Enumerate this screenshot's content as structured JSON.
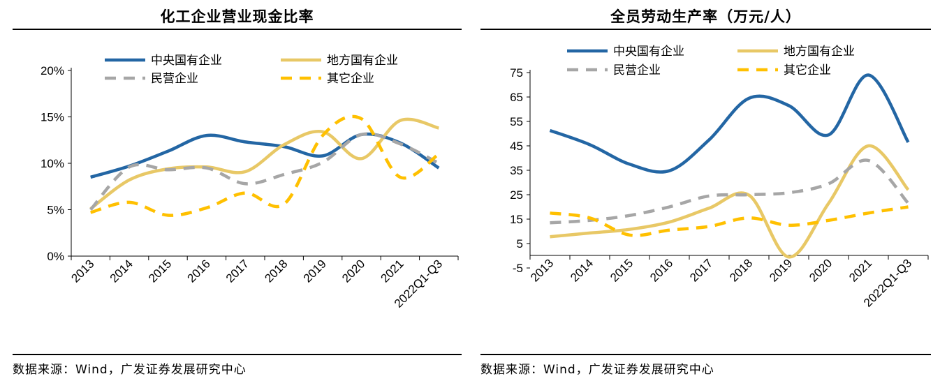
{
  "source_label": "数据来源：Wind，广发证券发展研究中心",
  "chart_data": [
    {
      "type": "line",
      "title": "化工企业营业现金比率",
      "xlabel": "",
      "ylabel": "",
      "categories": [
        "2013",
        "2014",
        "2015",
        "2016",
        "2017",
        "2018",
        "2019",
        "2020",
        "2021",
        "2022Q1-Q3"
      ],
      "y_ticks": [
        "0%",
        "5%",
        "10%",
        "15%",
        "20%"
      ],
      "ylim": [
        0,
        20
      ],
      "y_unit": "%",
      "legend_position": "top",
      "series": [
        {
          "name": "中央国有企业",
          "color": "#2366a4",
          "style": "solid",
          "values": [
            8.5,
            9.7,
            11.3,
            13.0,
            12.3,
            11.8,
            10.8,
            13.1,
            12.2,
            9.5
          ]
        },
        {
          "name": "地方国有企业",
          "color": "#e8c866",
          "style": "solid",
          "values": [
            5.1,
            8.2,
            9.4,
            9.6,
            9.1,
            12.0,
            13.4,
            10.5,
            14.6,
            13.8
          ]
        },
        {
          "name": "民营企业",
          "color": "#a6a6a6",
          "style": "dashed",
          "values": [
            5.0,
            9.6,
            9.3,
            9.5,
            7.8,
            8.8,
            10.1,
            13.1,
            12.1,
            10.0
          ]
        },
        {
          "name": "其它企业",
          "color": "#ffc000",
          "style": "dashed",
          "values": [
            4.7,
            5.8,
            4.4,
            5.2,
            6.8,
            5.6,
            13.0,
            14.8,
            8.5,
            11.0
          ]
        }
      ]
    },
    {
      "type": "line",
      "title": "全员劳动生产率（万元/人）",
      "xlabel": "",
      "ylabel": "",
      "categories": [
        "2013",
        "2014",
        "2015",
        "2016",
        "2017",
        "2018",
        "2019",
        "2020",
        "2021",
        "2022Q1-Q3"
      ],
      "y_ticks": [
        "-5",
        "5",
        "15",
        "25",
        "35",
        "45",
        "55",
        "65",
        "75"
      ],
      "ylim": [
        -5,
        75
      ],
      "y_unit": "",
      "legend_position": "top",
      "series": [
        {
          "name": "中央国有企业",
          "color": "#2366a4",
          "style": "solid",
          "values": [
            51.3,
            45.5,
            37.5,
            34.8,
            47.5,
            64.5,
            61.5,
            49.5,
            74.0,
            46.5
          ]
        },
        {
          "name": "地方国有企业",
          "color": "#e8c866",
          "style": "solid",
          "values": [
            7.8,
            9.3,
            10.8,
            13.8,
            19.5,
            24.8,
            -0.5,
            21.5,
            45.0,
            27.0
          ]
        },
        {
          "name": "民营企业",
          "color": "#a6a6a6",
          "style": "dashed",
          "values": [
            13.5,
            14.5,
            16.5,
            20.0,
            24.5,
            25.0,
            25.8,
            29.5,
            39.0,
            21.5
          ]
        },
        {
          "name": "其它企业",
          "color": "#ffc000",
          "style": "dashed",
          "values": [
            17.5,
            15.5,
            8.5,
            10.5,
            12.0,
            15.5,
            12.5,
            14.5,
            17.5,
            20.0
          ]
        }
      ]
    }
  ]
}
